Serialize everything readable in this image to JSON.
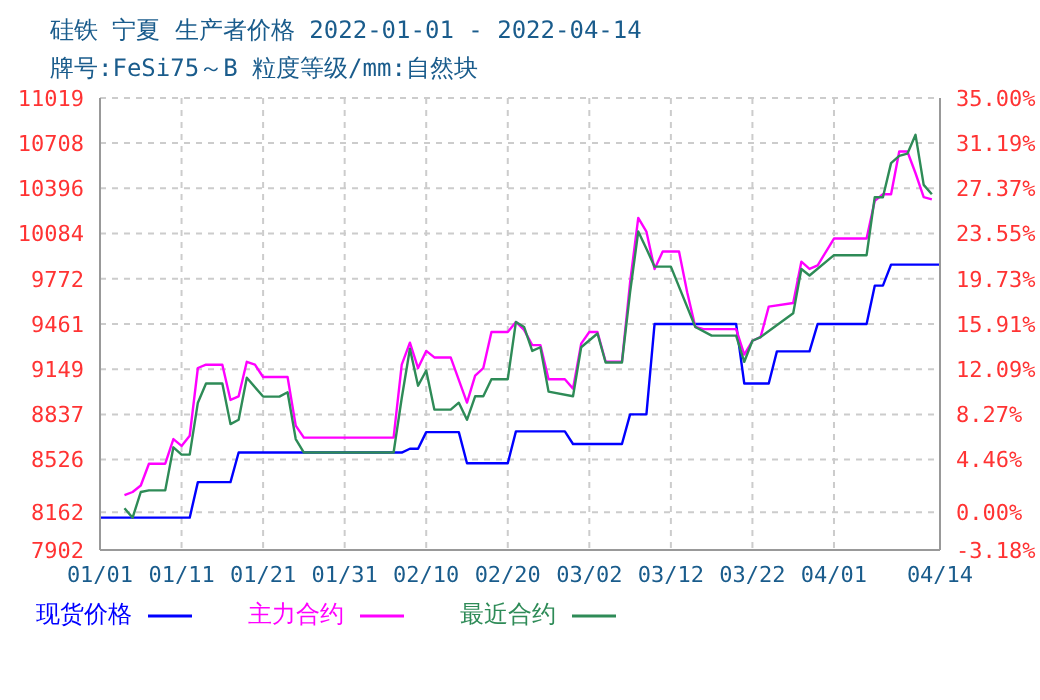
{
  "chart_data": {
    "type": "line",
    "title": "硅铁 宁夏 生产者价格 2022-01-01 - 2022-04-14",
    "subtitle": "牌号:FeSi75～B 粒度等级/mm:自然块",
    "xlim": [
      "2022-01-01",
      "2022-04-14"
    ],
    "xticks": [
      {
        "value": "2022-01-01",
        "label": "01/01"
      },
      {
        "value": "2022-01-11",
        "label": "01/11"
      },
      {
        "value": "2022-01-21",
        "label": "01/21"
      },
      {
        "value": "2022-01-31",
        "label": "01/31"
      },
      {
        "value": "2022-02-10",
        "label": "02/10"
      },
      {
        "value": "2022-02-20",
        "label": "02/20"
      },
      {
        "value": "2022-03-02",
        "label": "03/02"
      },
      {
        "value": "2022-03-12",
        "label": "03/12"
      },
      {
        "value": "2022-03-22",
        "label": "03/22"
      },
      {
        "value": "2022-04-01",
        "label": "04/01"
      },
      {
        "value": "2022-04-14",
        "label": "04/14"
      }
    ],
    "ylim": [
      7902,
      11019
    ],
    "yticks": [
      7902,
      8162,
      8526,
      8837,
      9149,
      9461,
      9772,
      10084,
      10396,
      10708,
      11019
    ],
    "y2lim": [
      -3.18,
      35
    ],
    "y2ticks": [
      {
        "value": -3.18,
        "label": "-3.18%"
      },
      {
        "value": 0,
        "label": "0.00%"
      },
      {
        "value": 4.46,
        "label": "4.46%"
      },
      {
        "value": 8.27,
        "label": "8.27%"
      },
      {
        "value": 12.09,
        "label": "12.09%"
      },
      {
        "value": 15.91,
        "label": "15.91%"
      },
      {
        "value": 19.73,
        "label": "19.73%"
      },
      {
        "value": 23.55,
        "label": "23.55%"
      },
      {
        "value": 27.37,
        "label": "27.37%"
      },
      {
        "value": 31.19,
        "label": "31.19%"
      },
      {
        "value": 35,
        "label": "35.00%"
      }
    ],
    "grid": true,
    "legend": "bottom",
    "series": [
      {
        "name": "现货价格",
        "color": "#0000ff",
        "x": [
          "2022-01-01",
          "2022-01-12",
          "2022-01-13",
          "2022-01-17",
          "2022-01-18",
          "2022-02-07",
          "2022-02-08",
          "2022-02-09",
          "2022-02-10",
          "2022-02-14",
          "2022-02-15",
          "2022-02-20",
          "2022-02-21",
          "2022-02-27",
          "2022-02-28",
          "2022-03-06",
          "2022-03-07",
          "2022-03-09",
          "2022-03-10",
          "2022-03-20",
          "2022-03-21",
          "2022-03-24",
          "2022-03-25",
          "2022-03-29",
          "2022-03-30",
          "2022-04-05",
          "2022-04-06",
          "2022-04-07",
          "2022-04-08",
          "2022-04-14"
        ],
        "values": [
          8125,
          8125,
          8370,
          8370,
          8574,
          8574,
          8600,
          8600,
          8715,
          8715,
          8500,
          8500,
          8720,
          8720,
          8633,
          8633,
          8837,
          8837,
          9461,
          9461,
          9050,
          9050,
          9272,
          9272,
          9461,
          9461,
          9725,
          9725,
          9870,
          9870
        ]
      },
      {
        "name": "主力合约",
        "color": "#ff00ff",
        "x": [
          "2022-01-04",
          "2022-01-05",
          "2022-01-06",
          "2022-01-07",
          "2022-01-09",
          "2022-01-10",
          "2022-01-11",
          "2022-01-12",
          "2022-01-13",
          "2022-01-14",
          "2022-01-16",
          "2022-01-17",
          "2022-01-18",
          "2022-01-19",
          "2022-01-20",
          "2022-01-21",
          "2022-01-24",
          "2022-01-25",
          "2022-01-26",
          "2022-02-06",
          "2022-02-07",
          "2022-02-08",
          "2022-02-09",
          "2022-02-10",
          "2022-02-11",
          "2022-02-13",
          "2022-02-15",
          "2022-02-16",
          "2022-02-17",
          "2022-02-18",
          "2022-02-20",
          "2022-02-21",
          "2022-02-22",
          "2022-02-23",
          "2022-02-24",
          "2022-02-25",
          "2022-02-27",
          "2022-02-28",
          "2022-03-01",
          "2022-03-02",
          "2022-03-03",
          "2022-03-04",
          "2022-03-06",
          "2022-03-07",
          "2022-03-08",
          "2022-03-09",
          "2022-03-10",
          "2022-03-11",
          "2022-03-13",
          "2022-03-14",
          "2022-03-15",
          "2022-03-16",
          "2022-03-20",
          "2022-03-21",
          "2022-03-22",
          "2022-03-23",
          "2022-03-24",
          "2022-03-27",
          "2022-03-28",
          "2022-03-29",
          "2022-03-30",
          "2022-04-01",
          "2022-04-05",
          "2022-04-06",
          "2022-04-07",
          "2022-04-08",
          "2022-04-09",
          "2022-04-10",
          "2022-04-11",
          "2022-04-12",
          "2022-04-13"
        ],
        "values": [
          8280,
          8302,
          8347,
          8497,
          8497,
          8667,
          8620,
          8690,
          9157,
          9180,
          9180,
          8937,
          8962,
          9200,
          9180,
          9095,
          9095,
          8760,
          8677,
          8677,
          9180,
          9332,
          9157,
          9275,
          9230,
          9230,
          8918,
          9105,
          9157,
          9405,
          9405,
          9475,
          9420,
          9315,
          9315,
          9080,
          9080,
          9015,
          9325,
          9405,
          9405,
          9200,
          9200,
          9748,
          10192,
          10098,
          9840,
          9960,
          9960,
          9680,
          9440,
          9425,
          9425,
          9250,
          9345,
          9370,
          9580,
          9605,
          9890,
          9840,
          9865,
          10050,
          10050,
          10310,
          10355,
          10355,
          10650,
          10650,
          10500,
          10335,
          10320
        ]
      },
      {
        "name": "最近合约",
        "color": "#2e8b57",
        "x": [
          "2022-01-04",
          "2022-01-05",
          "2022-01-06",
          "2022-01-07",
          "2022-01-09",
          "2022-01-10",
          "2022-01-11",
          "2022-01-12",
          "2022-01-13",
          "2022-01-14",
          "2022-01-16",
          "2022-01-17",
          "2022-01-18",
          "2022-01-19",
          "2022-01-21",
          "2022-01-23",
          "2022-01-24",
          "2022-01-25",
          "2022-01-26",
          "2022-02-06",
          "2022-02-07",
          "2022-02-08",
          "2022-02-09",
          "2022-02-10",
          "2022-02-11",
          "2022-02-13",
          "2022-02-14",
          "2022-02-15",
          "2022-02-16",
          "2022-02-17",
          "2022-02-18",
          "2022-02-20",
          "2022-02-21",
          "2022-02-22",
          "2022-02-23",
          "2022-02-24",
          "2022-02-25",
          "2022-02-28",
          "2022-03-01",
          "2022-03-03",
          "2022-03-04",
          "2022-03-06",
          "2022-03-07",
          "2022-03-08",
          "2022-03-09",
          "2022-03-10",
          "2022-03-12",
          "2022-03-15",
          "2022-03-17",
          "2022-03-20",
          "2022-03-21",
          "2022-03-22",
          "2022-03-23",
          "2022-03-27",
          "2022-03-28",
          "2022-03-29",
          "2022-04-01",
          "2022-04-05",
          "2022-04-06",
          "2022-04-07",
          "2022-04-08",
          "2022-04-09",
          "2022-04-10",
          "2022-04-11",
          "2022-04-12",
          "2022-04-13"
        ],
        "values": [
          8190,
          8125,
          8302,
          8313,
          8313,
          8610,
          8560,
          8560,
          8918,
          9050,
          9050,
          8770,
          8800,
          9090,
          8960,
          8960,
          8990,
          8667,
          8574,
          8574,
          8950,
          9290,
          9035,
          9140,
          8870,
          8870,
          8918,
          8800,
          8962,
          8962,
          9080,
          9080,
          9475,
          9440,
          9275,
          9300,
          8994,
          8962,
          9300,
          9395,
          9195,
          9195,
          9680,
          10098,
          9980,
          9856,
          9856,
          9440,
          9380,
          9380,
          9200,
          9345,
          9370,
          9535,
          9840,
          9795,
          9935,
          9935,
          10335,
          10335,
          10570,
          10620,
          10635,
          10765,
          10420,
          10355
        ]
      }
    ]
  }
}
